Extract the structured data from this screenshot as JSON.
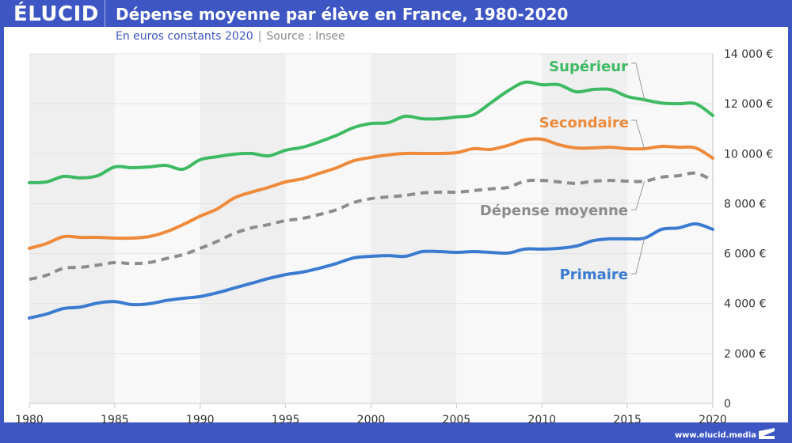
{
  "header": {
    "logo": "ÉLUCID",
    "title": "Dépense moyenne par élève en France, 1980-2020"
  },
  "subtitle": {
    "unit": "En euros constants 2020",
    "separator": "|",
    "source": "Source : Insee"
  },
  "footer": {
    "url": "www.elucid.media"
  },
  "chart_data": {
    "type": "line",
    "title": "Dépense moyenne par élève en France, 1980-2020",
    "subtitle": "En euros constants 2020 | Source : Insee",
    "xlabel": "",
    "ylabel": "",
    "xlim": [
      1980,
      2020
    ],
    "ylim": [
      0,
      14000
    ],
    "x_ticks": [
      1980,
      1985,
      1990,
      1995,
      2000,
      2005,
      2010,
      2015,
      2020
    ],
    "x_tick_labels": [
      "1980",
      "1985",
      "1990",
      "1995",
      "2000",
      "2005",
      "2010",
      "2015",
      "2020"
    ],
    "y_ticks": [
      0,
      2000,
      4000,
      6000,
      8000,
      10000,
      12000,
      14000
    ],
    "y_tick_labels": [
      "0",
      "2 000 €",
      "4 000 €",
      "6 000 €",
      "8 000 €",
      "10 000 €",
      "12 000 €",
      "14 000 €"
    ],
    "y_axis_side": "right",
    "grid": true,
    "background_bands": "alternating 5-year columns",
    "legend": "inline labels with leader lines, right side",
    "x": [
      1980,
      1981,
      1982,
      1983,
      1984,
      1985,
      1986,
      1987,
      1988,
      1989,
      1990,
      1991,
      1992,
      1993,
      1994,
      1995,
      1996,
      1997,
      1998,
      1999,
      2000,
      2001,
      2002,
      2003,
      2004,
      2005,
      2006,
      2007,
      2008,
      2009,
      2010,
      2011,
      2012,
      2013,
      2014,
      2015,
      2016,
      2017,
      2018,
      2019,
      2020
    ],
    "series": [
      {
        "name": "Supérieur",
        "color": "#3dba63",
        "style": "solid",
        "label_year": 2016,
        "values": [
          8840,
          8870,
          9090,
          9030,
          9120,
          9470,
          9440,
          9470,
          9530,
          9380,
          9760,
          9880,
          9980,
          10010,
          9910,
          10140,
          10260,
          10480,
          10740,
          11050,
          11210,
          11240,
          11500,
          11400,
          11400,
          11470,
          11560,
          12030,
          12510,
          12860,
          12760,
          12760,
          12480,
          12570,
          12570,
          12290,
          12160,
          12030,
          12000,
          12000,
          11530
        ]
      },
      {
        "name": "Secondaire",
        "color": "#ee8a3a",
        "style": "solid",
        "label_year": 2016,
        "values": [
          6210,
          6400,
          6680,
          6650,
          6650,
          6620,
          6620,
          6680,
          6870,
          7160,
          7500,
          7790,
          8230,
          8460,
          8650,
          8870,
          9000,
          9220,
          9440,
          9720,
          9850,
          9950,
          10010,
          10010,
          10010,
          10040,
          10200,
          10170,
          10330,
          10550,
          10580,
          10360,
          10230,
          10230,
          10260,
          10200,
          10200,
          10290,
          10260,
          10230,
          9820
        ]
      },
      {
        "name": "Dépense moyenne",
        "color": "#8c8c8c",
        "style": "dashed",
        "label_year": 2016,
        "values": [
          4970,
          5130,
          5410,
          5450,
          5540,
          5640,
          5600,
          5640,
          5800,
          5960,
          6210,
          6490,
          6810,
          7030,
          7160,
          7320,
          7410,
          7570,
          7760,
          8050,
          8200,
          8270,
          8330,
          8430,
          8460,
          8460,
          8520,
          8590,
          8650,
          8900,
          8930,
          8870,
          8810,
          8900,
          8930,
          8900,
          8900,
          9060,
          9120,
          9220,
          8930
        ]
      },
      {
        "name": "Primaire",
        "color": "#3a7bd0",
        "style": "solid",
        "label_year": 2016,
        "values": [
          3420,
          3580,
          3800,
          3860,
          4020,
          4080,
          3960,
          3990,
          4120,
          4210,
          4280,
          4430,
          4620,
          4810,
          5000,
          5160,
          5260,
          5420,
          5610,
          5830,
          5890,
          5920,
          5890,
          6080,
          6080,
          6050,
          6080,
          6050,
          6020,
          6180,
          6180,
          6210,
          6300,
          6520,
          6590,
          6590,
          6620,
          6970,
          7030,
          7190,
          6970
        ]
      }
    ]
  }
}
